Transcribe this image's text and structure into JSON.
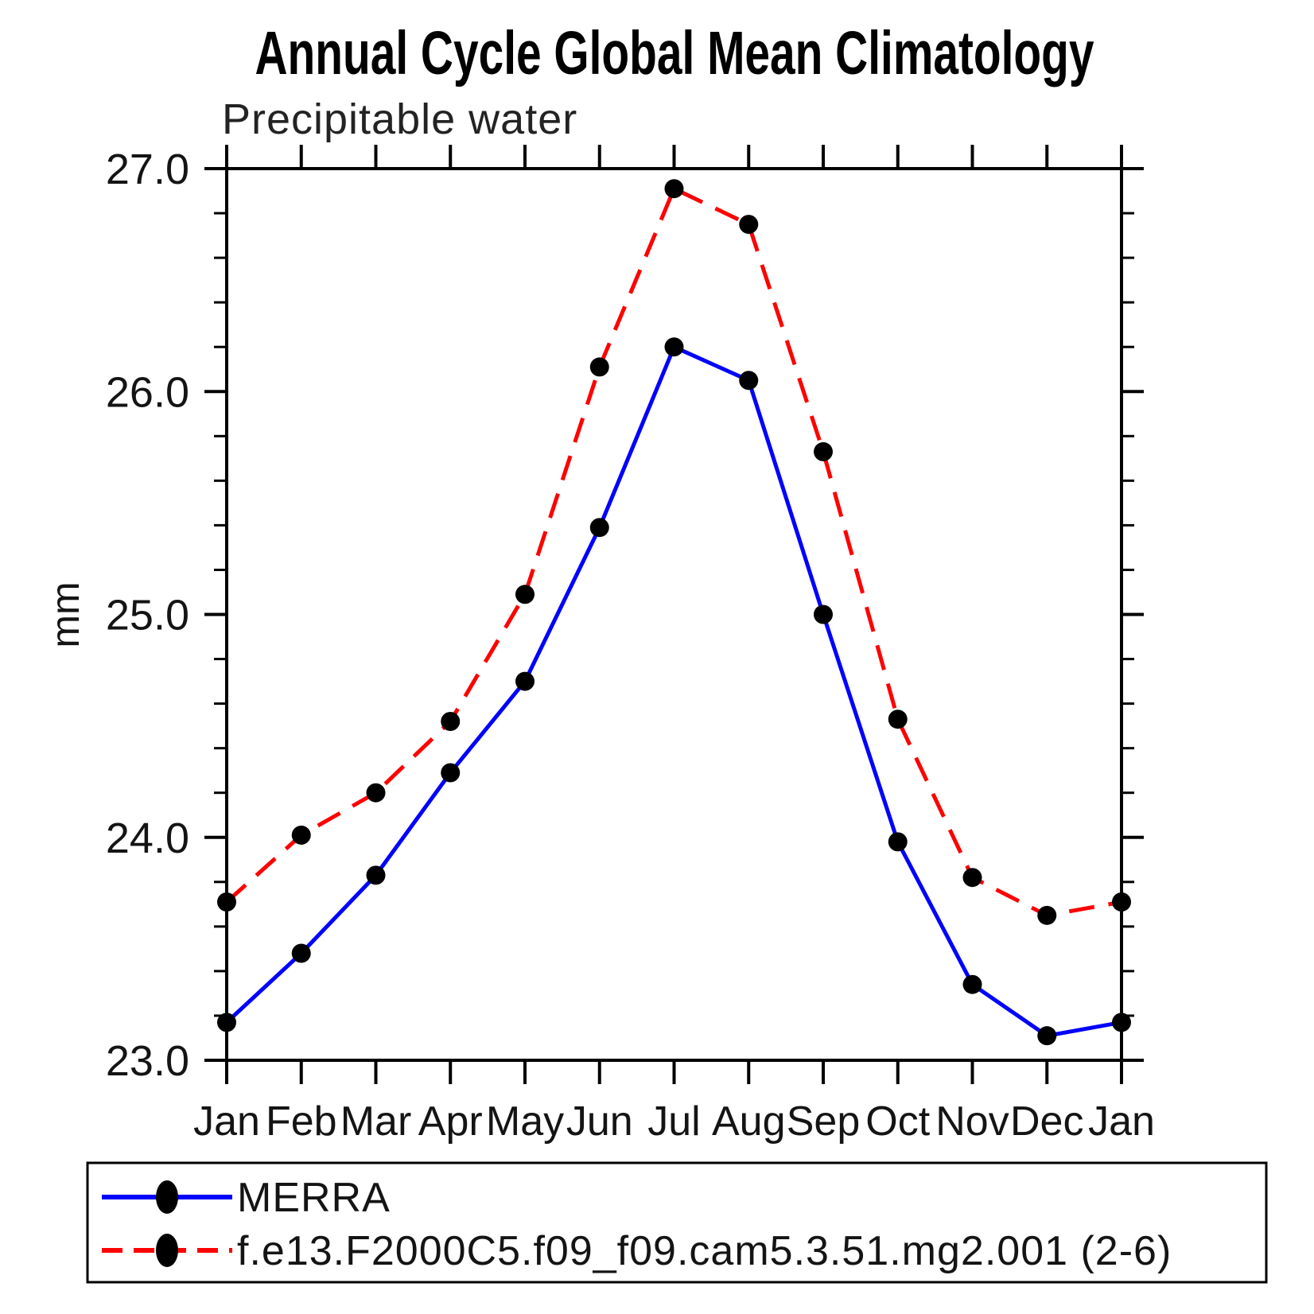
{
  "page": {
    "background": "#ffffff"
  },
  "title": "Annual Cycle Global Mean Climatology",
  "chart_data": {
    "type": "line",
    "title": "Annual Cycle Global Mean Climatology",
    "subtitle": "Precipitable water",
    "ylabel": "mm",
    "xlabel": "",
    "categories": [
      "Jan",
      "Feb",
      "Mar",
      "Apr",
      "May",
      "Jun",
      "Jul",
      "Aug",
      "Sep",
      "Oct",
      "Nov",
      "Dec",
      "Jan"
    ],
    "ylim": [
      23.0,
      27.0
    ],
    "y_major_ticks": [
      "23.0",
      "24.0",
      "25.0",
      "26.0",
      "27.0"
    ],
    "y_minor_step": 0.2,
    "grid": false,
    "legend_position": "bottom-box",
    "axis_color": "#000000",
    "marker_color": "#000000",
    "series": [
      {
        "name": "MERRA",
        "color": "#0000ff",
        "line_style": "solid",
        "marker": "filled-circle",
        "values": [
          23.17,
          23.48,
          23.83,
          24.29,
          24.7,
          25.39,
          26.2,
          26.05,
          25.0,
          23.98,
          23.34,
          23.11,
          23.17
        ]
      },
      {
        "name": "f.e13.F2000C5.f09_f09.cam5.3.51.mg2.001 (2-6)",
        "color": "#ff0000",
        "line_style": "dashed",
        "marker": "filled-circle",
        "values": [
          23.71,
          24.01,
          24.2,
          24.52,
          25.09,
          26.11,
          26.91,
          26.75,
          25.73,
          24.53,
          23.82,
          23.65,
          23.71
        ]
      }
    ]
  }
}
